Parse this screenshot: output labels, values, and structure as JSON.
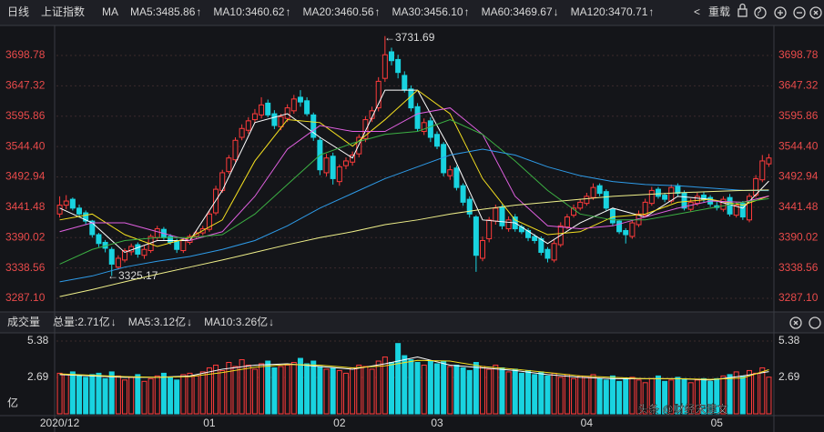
{
  "toolbar": {
    "period": "日线",
    "symbol": "上证指数",
    "indicator": "MA",
    "reload": "重载"
  },
  "watermark": "头条 @财经宋建文",
  "chart_data": [
    {
      "type": "candlestick",
      "up_color": "#ff3b3b",
      "down_color": "#19d3e0",
      "ylim": [
        3268.6,
        3746.6
      ],
      "yticks": [
        {
          "value": 3287.1,
          "label": "3287.10"
        },
        3338.56,
        3390.02,
        3441.48,
        {
          "value": 3544.4,
          "label": "3544.40"
        },
        3492.94,
        3595.86,
        3647.32,
        3698.78
      ],
      "grid": true,
      "annotations": [
        "←3731.69",
        "←3325.17"
      ],
      "open": [
        3430,
        3445,
        3455,
        3440,
        3432,
        3418,
        3395,
        3382,
        3370,
        3340,
        3352,
        3366,
        3378,
        3360,
        3368,
        3390,
        3404,
        3392,
        3384,
        3368,
        3382,
        3392,
        3398,
        3404,
        3432,
        3470,
        3502,
        3522,
        3560,
        3572,
        3590,
        3598,
        3618,
        3600,
        3578,
        3592,
        3605,
        3628,
        3622,
        3598,
        3555,
        3500,
        3528,
        3485,
        3512,
        3518,
        3532,
        3558,
        3592,
        3610,
        3660,
        3705,
        3692,
        3665,
        3642,
        3612,
        3570,
        3588,
        3565,
        3548,
        3495,
        3508,
        3478,
        3455,
        3425,
        3355,
        3388,
        3418,
        3442,
        3405,
        3425,
        3408,
        3402,
        3392,
        3388,
        3370,
        3352,
        3378,
        3408,
        3428,
        3440,
        3448,
        3458,
        3478,
        3468,
        3438,
        3418,
        3402,
        3392,
        3412,
        3428,
        3448,
        3472,
        3462,
        3452,
        3478,
        3466,
        3438,
        3448,
        3462,
        3458,
        3444,
        3438,
        3458,
        3428,
        3448,
        3420,
        3462,
        3488,
        3515
      ],
      "high": [
        3460,
        3462,
        3458,
        3446,
        3436,
        3420,
        3398,
        3386,
        3374,
        3360,
        3372,
        3380,
        3382,
        3376,
        3396,
        3410,
        3408,
        3396,
        3388,
        3390,
        3396,
        3402,
        3410,
        3436,
        3478,
        3505,
        3530,
        3560,
        3582,
        3594,
        3608,
        3628,
        3624,
        3606,
        3600,
        3616,
        3632,
        3640,
        3628,
        3602,
        3560,
        3532,
        3534,
        3514,
        3526,
        3536,
        3565,
        3596,
        3612,
        3662,
        3731.69,
        3712,
        3700,
        3672,
        3648,
        3618,
        3592,
        3594,
        3570,
        3552,
        3512,
        3512,
        3482,
        3460,
        3428,
        3392,
        3425,
        3446,
        3446,
        3426,
        3430,
        3412,
        3406,
        3396,
        3392,
        3374,
        3386,
        3416,
        3430,
        3446,
        3456,
        3466,
        3482,
        3482,
        3472,
        3440,
        3420,
        3406,
        3420,
        3436,
        3456,
        3476,
        3476,
        3466,
        3480,
        3482,
        3470,
        3456,
        3466,
        3468,
        3462,
        3452,
        3460,
        3464,
        3450,
        3452,
        3465,
        3496,
        3530,
        3532
      ],
      "low": [
        3424,
        3438,
        3436,
        3424,
        3412,
        3390,
        3374,
        3365,
        3325.17,
        3336,
        3348,
        3360,
        3356,
        3354,
        3364,
        3386,
        3386,
        3378,
        3364,
        3364,
        3378,
        3388,
        3394,
        3400,
        3428,
        3466,
        3498,
        3518,
        3555,
        3566,
        3584,
        3592,
        3594,
        3574,
        3572,
        3586,
        3600,
        3612,
        3596,
        3554,
        3496,
        3494,
        3480,
        3478,
        3506,
        3512,
        3526,
        3552,
        3586,
        3604,
        3654,
        3682,
        3660,
        3636,
        3604,
        3570,
        3564,
        3552,
        3540,
        3494,
        3488,
        3470,
        3444,
        3424,
        3332,
        3350,
        3382,
        3412,
        3404,
        3400,
        3400,
        3396,
        3384,
        3380,
        3360,
        3348,
        3348,
        3374,
        3404,
        3424,
        3436,
        3444,
        3454,
        3460,
        3436,
        3410,
        3396,
        3380,
        3388,
        3408,
        3424,
        3444,
        3456,
        3450,
        3448,
        3460,
        3436,
        3434,
        3444,
        3450,
        3442,
        3436,
        3434,
        3426,
        3424,
        3420,
        3416,
        3458,
        3484,
        3510
      ],
      "close": [
        3445,
        3452,
        3440,
        3430,
        3418,
        3395,
        3380,
        3372,
        3345,
        3355,
        3368,
        3375,
        3362,
        3370,
        3392,
        3405,
        3390,
        3382,
        3370,
        3385,
        3392,
        3398,
        3405,
        3430,
        3472,
        3500,
        3525,
        3555,
        3575,
        3588,
        3600,
        3615,
        3598,
        3580,
        3595,
        3610,
        3625,
        3620,
        3600,
        3560,
        3505,
        3525,
        3490,
        3510,
        3520,
        3530,
        3560,
        3590,
        3605,
        3655,
        3700,
        3690,
        3670,
        3640,
        3610,
        3575,
        3585,
        3560,
        3545,
        3500,
        3505,
        3475,
        3450,
        3430,
        3360,
        3385,
        3420,
        3440,
        3410,
        3420,
        3405,
        3400,
        3390,
        3385,
        3365,
        3355,
        3380,
        3410,
        3425,
        3440,
        3450,
        3460,
        3475,
        3465,
        3440,
        3415,
        3400,
        3395,
        3415,
        3430,
        3450,
        3470,
        3460,
        3455,
        3475,
        3465,
        3440,
        3450,
        3460,
        3455,
        3447,
        3441,
        3455,
        3430,
        3445,
        3425,
        3460,
        3490,
        3520,
        3525
      ],
      "ma_series": [
        {
          "name": "MA5:3485.86",
          "arrow": "↑",
          "color": "#ffffff",
          "x": [
            0,
            5,
            10,
            15,
            20,
            25,
            30,
            35,
            40,
            45,
            50,
            55,
            60,
            65,
            70,
            75,
            80,
            85,
            90,
            95,
            100,
            105,
            109
          ],
          "values": [
            3440,
            3415,
            3365,
            3385,
            3385,
            3470,
            3585,
            3600,
            3560,
            3525,
            3640,
            3640,
            3540,
            3420,
            3415,
            3380,
            3415,
            3440,
            3425,
            3460,
            3455,
            3440,
            3485.86
          ]
        },
        {
          "name": "MA10:3460.62",
          "arrow": "↑",
          "color": "#f5e020",
          "x": [
            0,
            5,
            10,
            15,
            20,
            25,
            30,
            35,
            40,
            45,
            50,
            55,
            60,
            65,
            70,
            75,
            80,
            85,
            90,
            95,
            100,
            105,
            109
          ],
          "values": [
            3420,
            3430,
            3395,
            3375,
            3390,
            3420,
            3520,
            3590,
            3585,
            3545,
            3590,
            3640,
            3600,
            3490,
            3420,
            3395,
            3400,
            3425,
            3430,
            3450,
            3455,
            3445,
            3460.62
          ]
        },
        {
          "name": "MA20:3460.56",
          "arrow": "↑",
          "color": "#e060e0",
          "x": [
            0,
            5,
            10,
            15,
            20,
            25,
            30,
            35,
            40,
            45,
            50,
            55,
            60,
            65,
            70,
            75,
            80,
            85,
            90,
            95,
            100,
            105,
            109
          ],
          "values": [
            3400,
            3415,
            3415,
            3400,
            3385,
            3400,
            3460,
            3540,
            3580,
            3570,
            3570,
            3600,
            3610,
            3565,
            3460,
            3410,
            3405,
            3410,
            3425,
            3440,
            3452,
            3450,
            3460.56
          ]
        },
        {
          "name": "MA30:3456.10",
          "arrow": "↑",
          "color": "#3cb043",
          "x": [
            0,
            5,
            10,
            15,
            20,
            25,
            30,
            35,
            40,
            45,
            50,
            55,
            60,
            65,
            70,
            75,
            80,
            85,
            90,
            95,
            100,
            105,
            109
          ],
          "values": [
            3345,
            3370,
            3385,
            3390,
            3390,
            3395,
            3430,
            3480,
            3530,
            3550,
            3565,
            3570,
            3590,
            3565,
            3520,
            3470,
            3430,
            3420,
            3420,
            3430,
            3440,
            3450,
            3456.1
          ]
        },
        {
          "name": "MA60:3469.67",
          "arrow": "↓",
          "color": "#2e9be8",
          "x": [
            0,
            5,
            10,
            15,
            20,
            25,
            30,
            35,
            40,
            45,
            50,
            55,
            60,
            65,
            70,
            75,
            80,
            85,
            90,
            95,
            100,
            105,
            109
          ],
          "values": [
            3315,
            3325,
            3340,
            3350,
            3358,
            3370,
            3385,
            3410,
            3440,
            3465,
            3490,
            3510,
            3530,
            3540,
            3530,
            3510,
            3495,
            3485,
            3480,
            3478,
            3474,
            3470,
            3469.67
          ]
        },
        {
          "name": "MA120:3470.71",
          "arrow": "↑",
          "color": "#f0f08a",
          "x": [
            0,
            5,
            10,
            15,
            20,
            25,
            30,
            35,
            40,
            45,
            50,
            55,
            60,
            65,
            70,
            75,
            80,
            85,
            90,
            95,
            100,
            105,
            109
          ],
          "values": [
            3290,
            3302,
            3315,
            3328,
            3340,
            3352,
            3365,
            3378,
            3390,
            3400,
            3412,
            3420,
            3430,
            3438,
            3445,
            3450,
            3455,
            3460,
            3463,
            3466,
            3468,
            3470,
            3470.71
          ]
        }
      ]
    },
    {
      "type": "bar",
      "title": "成交量",
      "total": {
        "label": "总量:2.71亿",
        "arrow": "↓",
        "color": "#ff4040"
      },
      "y_unit": "亿",
      "ylim": [
        0,
        5.65
      ],
      "yticks": [
        2.69,
        5.38
      ],
      "categories": [
        "2020/12",
        null,
        null,
        null,
        null,
        null,
        null,
        null,
        null,
        null,
        null,
        null,
        null,
        null,
        null,
        null,
        null,
        null,
        null,
        null,
        null,
        null,
        null,
        "01",
        null,
        null,
        null,
        null,
        null,
        null,
        null,
        null,
        null,
        null,
        null,
        null,
        null,
        null,
        null,
        null,
        null,
        null,
        null,
        "02",
        null,
        null,
        null,
        null,
        null,
        null,
        null,
        null,
        null,
        null,
        null,
        null,
        null,
        null,
        "03",
        null,
        null,
        null,
        null,
        null,
        null,
        null,
        null,
        null,
        null,
        null,
        null,
        null,
        null,
        null,
        null,
        null,
        null,
        null,
        null,
        null,
        null,
        "04",
        null,
        null,
        null,
        null,
        null,
        null,
        null,
        null,
        null,
        null,
        null,
        null,
        null,
        null,
        null,
        null,
        null,
        null,
        null,
        "05",
        null,
        null,
        null,
        null,
        null,
        null,
        null,
        null
      ],
      "values": [
        3.0,
        2.9,
        3.1,
        2.8,
        2.7,
        2.9,
        3.0,
        2.6,
        3.1,
        2.8,
        2.5,
        2.7,
        2.9,
        2.4,
        2.6,
        2.8,
        3.0,
        2.7,
        2.5,
        2.9,
        3.0,
        2.8,
        3.1,
        3.4,
        3.6,
        3.2,
        3.8,
        3.5,
        4.0,
        3.6,
        3.3,
        3.7,
        3.9,
        3.4,
        3.5,
        3.6,
        3.8,
        4.1,
        3.7,
        3.9,
        3.5,
        3.3,
        3.4,
        3.2,
        3.0,
        3.4,
        3.6,
        3.5,
        3.3,
        3.9,
        4.2,
        3.8,
        5.2,
        4.3,
        4.0,
        3.8,
        3.6,
        3.9,
        3.7,
        3.9,
        3.5,
        3.6,
        3.4,
        3.2,
        3.8,
        3.5,
        3.3,
        3.6,
        3.4,
        3.1,
        3.3,
        3.0,
        3.2,
        2.9,
        3.1,
        2.8,
        3.0,
        2.7,
        2.9,
        2.6,
        2.8,
        2.7,
        2.9,
        2.6,
        2.5,
        2.8,
        2.4,
        2.6,
        2.7,
        2.5,
        2.3,
        2.6,
        2.8,
        2.4,
        2.5,
        2.7,
        2.6,
        2.3,
        2.5,
        2.6,
        2.4,
        2.6,
        2.8,
        2.9,
        3.1,
        2.8,
        3.2,
        3.0,
        3.4,
        2.71
      ],
      "ma_series": [
        {
          "name": "MA5:3.12亿",
          "arrow": "↓",
          "color": "#ffffff",
          "x": [
            0,
            5,
            10,
            15,
            20,
            25,
            30,
            35,
            40,
            45,
            50,
            55,
            60,
            65,
            70,
            75,
            80,
            85,
            90,
            95,
            100,
            105,
            109
          ],
          "values": [
            2.9,
            2.8,
            2.7,
            2.7,
            2.8,
            3.3,
            3.6,
            3.7,
            3.5,
            3.3,
            3.7,
            4.2,
            3.6,
            3.4,
            3.2,
            2.9,
            2.7,
            2.6,
            2.6,
            2.6,
            2.5,
            2.8,
            3.12
          ]
        },
        {
          "name": "MA10:3.26亿",
          "arrow": "↓",
          "color": "#f5e020",
          "x": [
            0,
            5,
            10,
            15,
            20,
            25,
            30,
            35,
            40,
            45,
            50,
            55,
            60,
            65,
            70,
            75,
            80,
            85,
            90,
            95,
            100,
            105,
            109
          ],
          "values": [
            2.95,
            2.85,
            2.75,
            2.7,
            2.75,
            3.05,
            3.45,
            3.65,
            3.6,
            3.4,
            3.55,
            3.95,
            3.9,
            3.5,
            3.3,
            3.05,
            2.8,
            2.7,
            2.6,
            2.6,
            2.55,
            2.65,
            3.26
          ]
        }
      ]
    }
  ]
}
